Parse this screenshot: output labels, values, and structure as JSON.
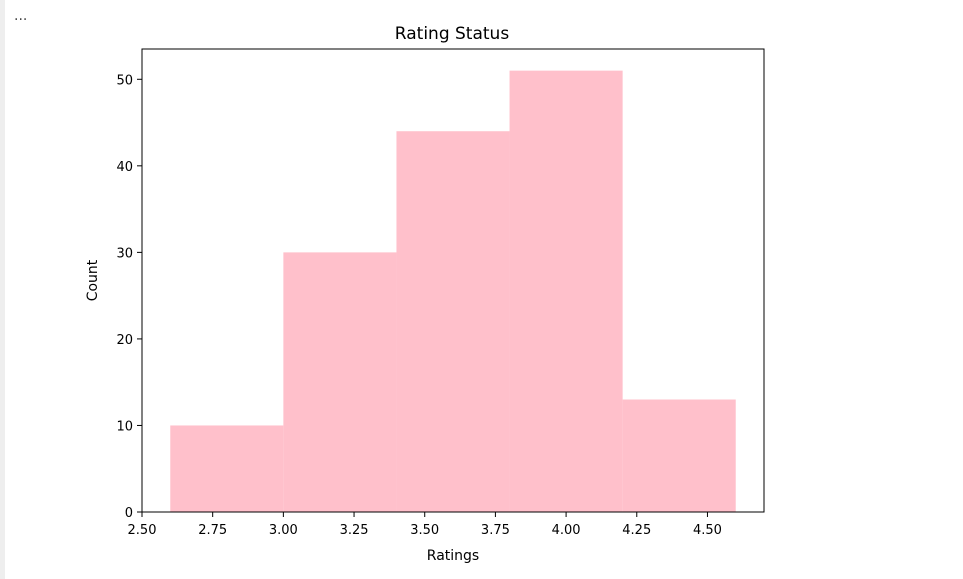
{
  "cell": {
    "overflow_indicator": "..."
  },
  "colors": {
    "bar_fill": "#ffc0cb",
    "axes": "#000000",
    "background": "#ffffff"
  },
  "chart_data": {
    "type": "histogram",
    "title": "Rating Status",
    "xlabel": "Ratings",
    "ylabel": "Count",
    "bins": [
      {
        "start": 2.6,
        "end": 3.0,
        "count": 10
      },
      {
        "start": 3.0,
        "end": 3.4,
        "count": 30
      },
      {
        "start": 3.4,
        "end": 3.8,
        "count": 44
      },
      {
        "start": 3.8,
        "end": 4.2,
        "count": 51
      },
      {
        "start": 4.2,
        "end": 4.6,
        "count": 13
      }
    ],
    "xlim": [
      2.5,
      4.7
    ],
    "ylim": [
      0,
      53.5
    ],
    "xticks": [
      2.5,
      2.75,
      3.0,
      3.25,
      3.5,
      3.75,
      4.0,
      4.25,
      4.5
    ],
    "xtick_labels": [
      "2.50",
      "2.75",
      "3.00",
      "3.25",
      "3.50",
      "3.75",
      "4.00",
      "4.25",
      "4.50"
    ],
    "yticks": [
      0,
      10,
      20,
      30,
      40,
      50
    ],
    "ytick_labels": [
      "0",
      "10",
      "20",
      "30",
      "40",
      "50"
    ],
    "grid": false,
    "legend": "none"
  }
}
